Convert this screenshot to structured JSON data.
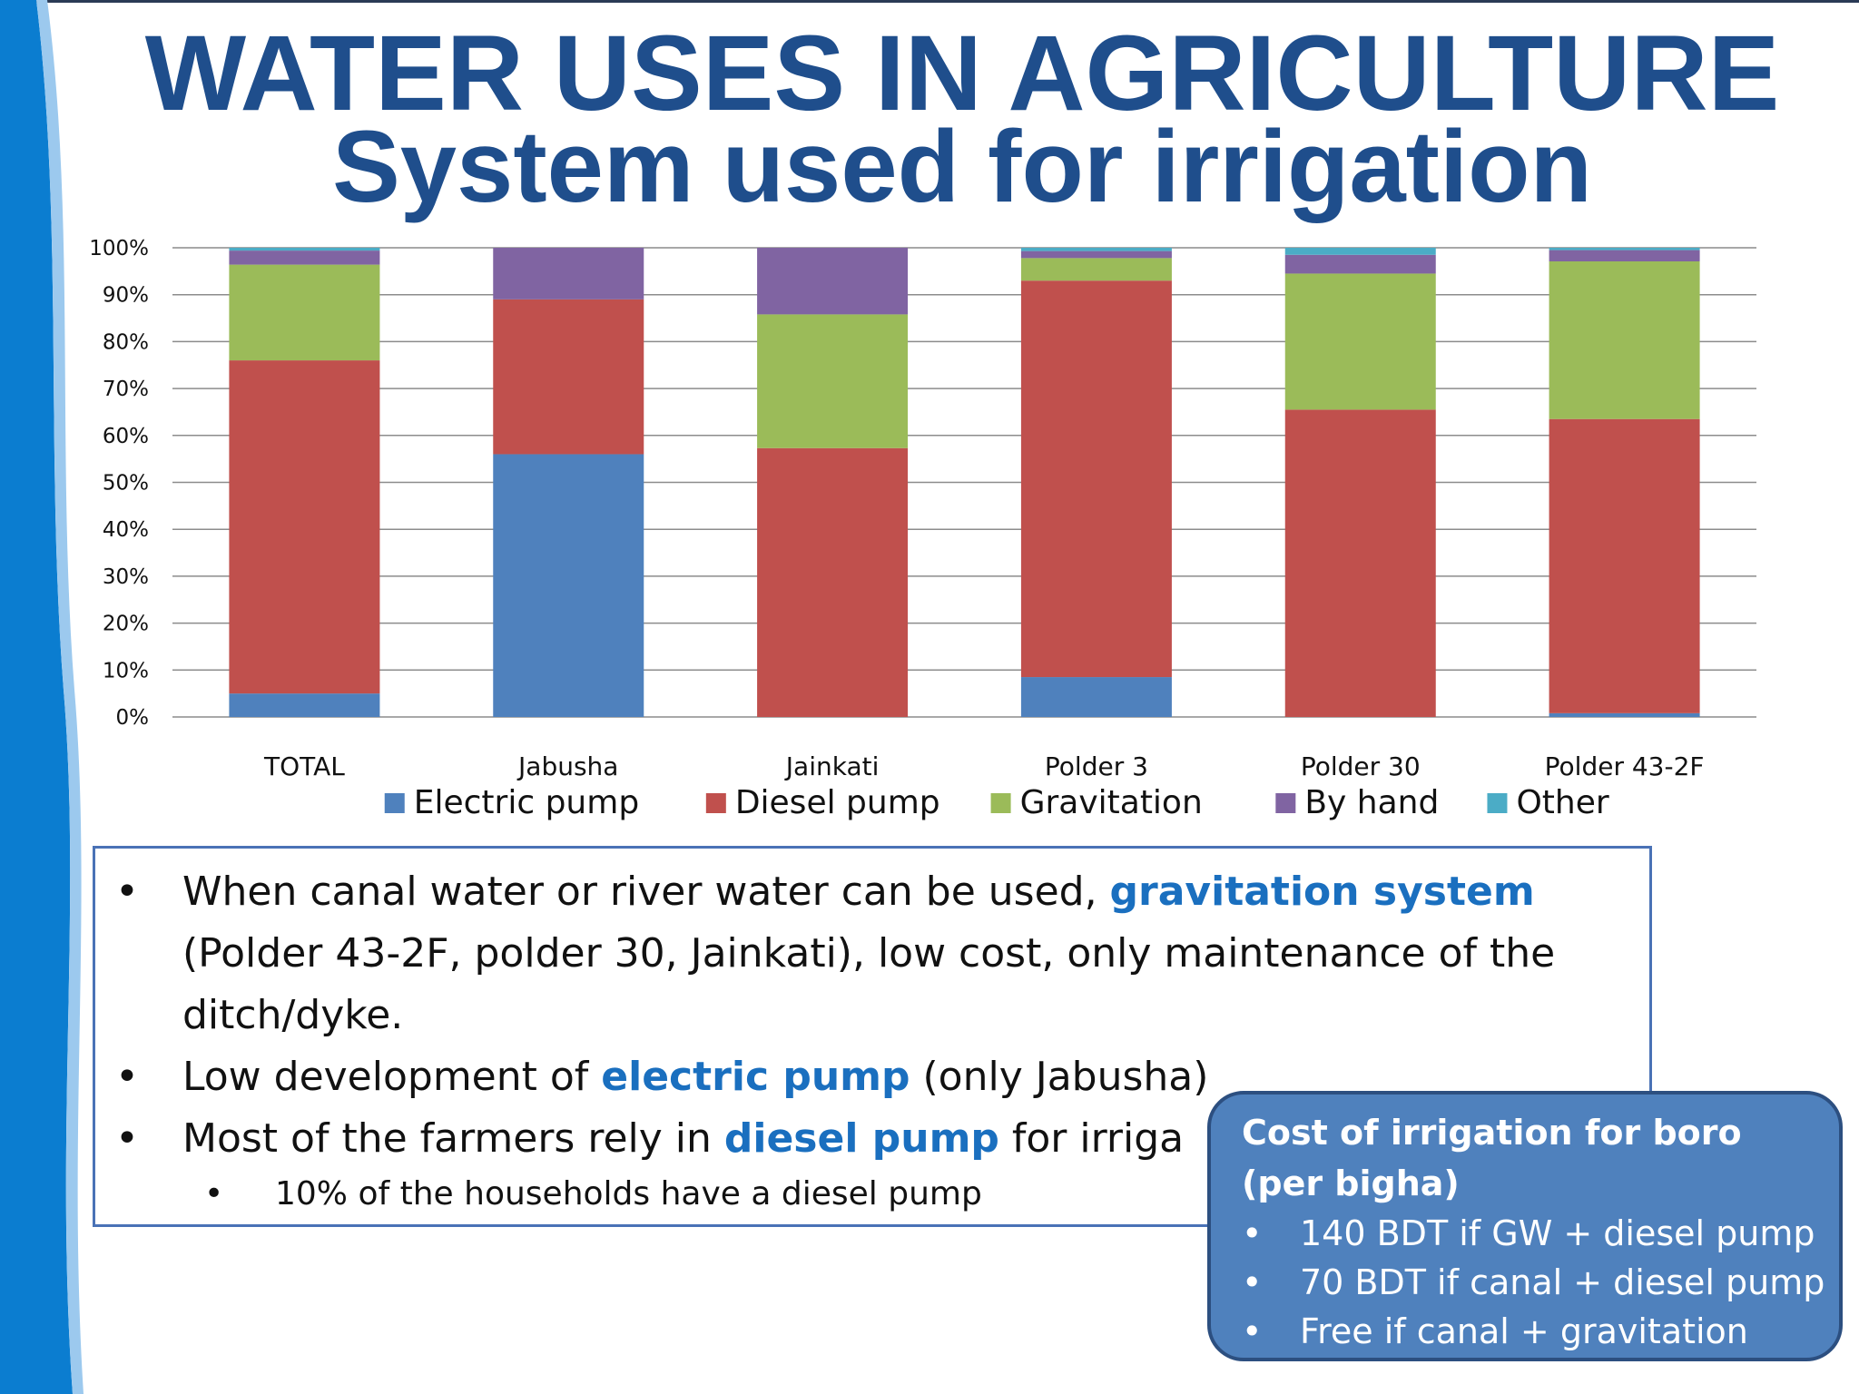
{
  "slide": {
    "title_line1": "WATER USES IN AGRICULTURE",
    "title_line2": "System used for irrigation",
    "colors": {
      "title": "#1f4e8c",
      "highlight": "#1a6fbf",
      "left_band": "#0b7dd0",
      "cost_box": "#4f81bd"
    }
  },
  "chart_data": {
    "type": "bar",
    "stacked": true,
    "percent": true,
    "categories": [
      "TOTAL",
      "Jabusha",
      "Jainkati",
      "Polder 3",
      "Polder 30",
      "Polder 43-2F"
    ],
    "series": [
      {
        "name": "Electric pump",
        "color": "#4f81bd",
        "values": [
          5,
          56,
          0,
          8.5,
          0,
          0.8
        ]
      },
      {
        "name": "Diesel pump",
        "color": "#c0504d",
        "values": [
          71,
          33,
          57.3,
          84.5,
          65.5,
          62.7
        ]
      },
      {
        "name": "Gravitation",
        "color": "#9bbb59",
        "values": [
          20.4,
          0,
          28.5,
          4.8,
          29,
          33.6
        ]
      },
      {
        "name": "By hand",
        "color": "#8064a2",
        "values": [
          3,
          11,
          14.2,
          1.5,
          4,
          2.4
        ]
      },
      {
        "name": "Other",
        "color": "#4bacc6",
        "values": [
          0.6,
          0,
          0,
          0.7,
          1.5,
          0.5
        ]
      }
    ],
    "yticks": [
      "0%",
      "10%",
      "20%",
      "30%",
      "40%",
      "50%",
      "60%",
      "70%",
      "80%",
      "90%",
      "100%"
    ],
    "ylim": [
      0,
      100
    ],
    "grid": true,
    "legend_position": "bottom",
    "title": "",
    "xlabel": "",
    "ylabel": ""
  },
  "notes": {
    "bullets": [
      {
        "before": "When canal water or river water can be used, ",
        "highlight": "gravitation system",
        "after": ""
      },
      {
        "before": "(Polder 43-2F, polder 30, Jainkati), low cost, only maintenance of the",
        "highlight": "",
        "after": ""
      },
      {
        "before": "ditch/dyke.",
        "highlight": "",
        "after": ""
      },
      {
        "before": "Low development of ",
        "highlight": "electric pump",
        "after": " (only Jabusha)"
      },
      {
        "before": "Most of the farmers rely in ",
        "highlight": "diesel pump",
        "after": " for irriga"
      }
    ],
    "sub_bullet": "10% of the households have a diesel pump",
    "bullet_char": "•",
    "sub_bullet_char": "•"
  },
  "cost_box": {
    "title": "Cost of irrigation for boro (per bigha)",
    "items": [
      "140 BDT if GW + diesel pump",
      "70 BDT if canal + diesel pump",
      "Free if canal + gravitation"
    ],
    "bullet_char": "•"
  }
}
